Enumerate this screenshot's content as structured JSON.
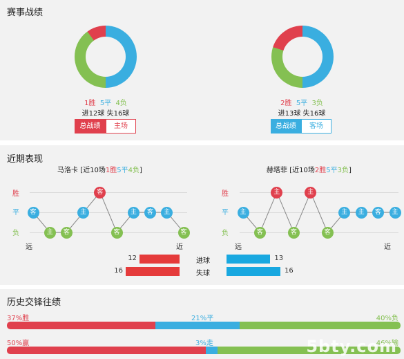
{
  "colors": {
    "win": "#e0404d",
    "draw": "#3aaee0",
    "loss": "#84c052",
    "neutral_grey": "#d8d8d8"
  },
  "record": {
    "title": "赛事战绩",
    "home": {
      "win_pct": 0.1,
      "draw_pct": 0.5,
      "loss_pct": 0.4,
      "win_text": "1胜",
      "draw_text": "5平",
      "loss_text": "4负",
      "goals_text": "进12球",
      "conceded_text": "失16球",
      "tab_overall": "总战绩",
      "tab_venue": "主场"
    },
    "away": {
      "win_pct": 0.2,
      "draw_pct": 0.5,
      "loss_pct": 0.3,
      "win_text": "2胜",
      "draw_text": "5平",
      "loss_text": "3负",
      "goals_text": "进13球",
      "conceded_text": "失16球",
      "tab_overall": "总战绩",
      "tab_venue": "客场"
    }
  },
  "recent": {
    "title": "近期表现",
    "axis": {
      "win": "胜",
      "draw": "平",
      "loss": "负",
      "far": "远",
      "near": "近"
    },
    "home": {
      "team": "马洛卡",
      "summary_prefix": "[近10场",
      "wins": "1胜",
      "draws": "5平",
      "losses": "4负",
      "summary_suffix": "]",
      "games": [
        {
          "r": "D",
          "v": "客"
        },
        {
          "r": "L",
          "v": "主"
        },
        {
          "r": "L",
          "v": "客"
        },
        {
          "r": "D",
          "v": "主"
        },
        {
          "r": "W",
          "v": "客"
        },
        {
          "r": "L",
          "v": "客"
        },
        {
          "r": "D",
          "v": "主"
        },
        {
          "r": "D",
          "v": "客"
        },
        {
          "r": "D",
          "v": "主"
        },
        {
          "r": "L",
          "v": "客"
        }
      ]
    },
    "away": {
      "team": "赫塔菲",
      "summary_prefix": "[近10场",
      "wins": "2胜",
      "draws": "5平",
      "losses": "3负",
      "summary_suffix": "]",
      "games": [
        {
          "r": "D",
          "v": "主"
        },
        {
          "r": "L",
          "v": "客"
        },
        {
          "r": "W",
          "v": "主"
        },
        {
          "r": "L",
          "v": "客"
        },
        {
          "r": "W",
          "v": "主"
        },
        {
          "r": "L",
          "v": "客"
        },
        {
          "r": "D",
          "v": "主"
        },
        {
          "r": "D",
          "v": "主"
        },
        {
          "r": "D",
          "v": "客"
        },
        {
          "r": "D",
          "v": "主"
        }
      ]
    },
    "goals_label": "进球",
    "conceded_label": "失球",
    "home_goals": 12,
    "home_conceded": 16,
    "away_goals": 13,
    "away_conceded": 16
  },
  "h2h": {
    "title": "历史交锋往绩",
    "row1": {
      "win_label": "37%胜",
      "draw_label": "21%平",
      "loss_label": "40%负",
      "win_pct": 37,
      "draw_pct": 21,
      "loss_pct": 40
    },
    "row2": {
      "win_label": "50%赢",
      "draw_label": "3%走",
      "loss_label": "46%输",
      "win_pct": 50,
      "draw_pct": 3,
      "loss_pct": 46
    }
  },
  "watermark": "5bty.com"
}
